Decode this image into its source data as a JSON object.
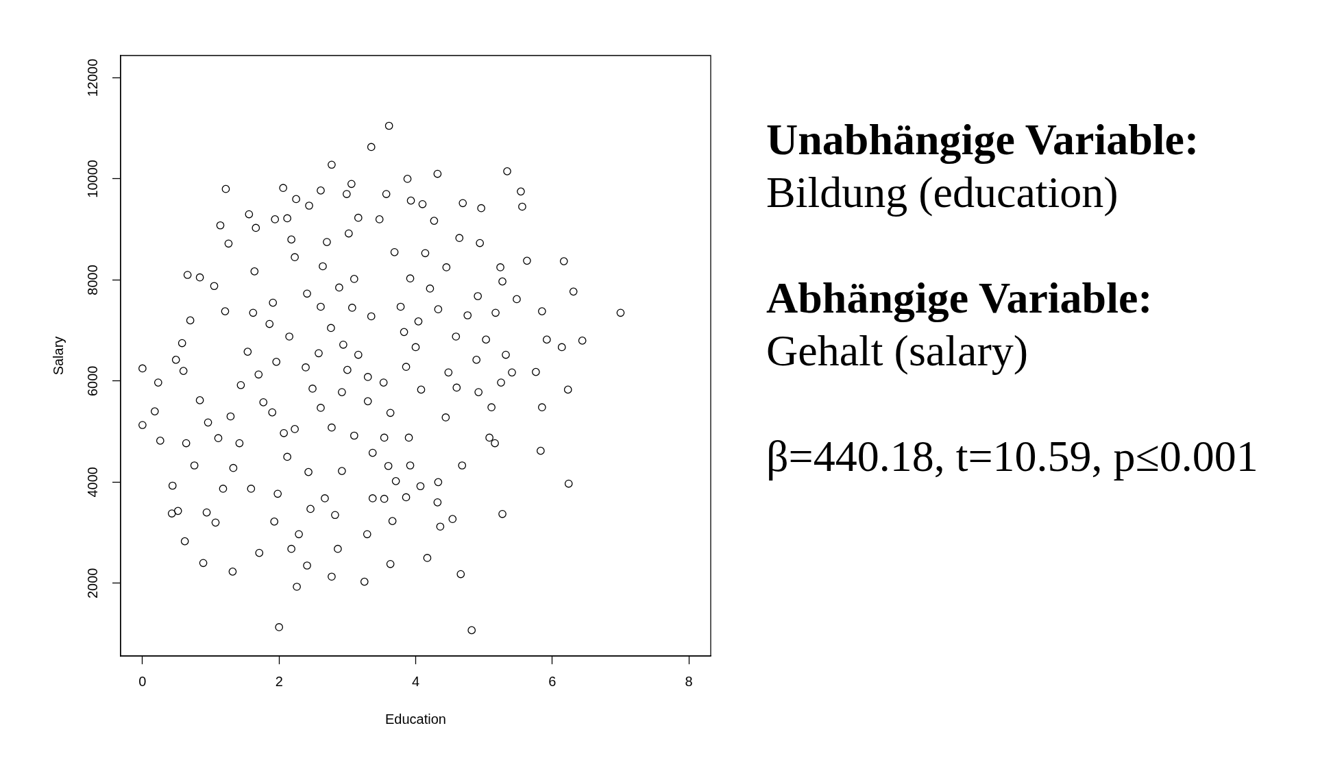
{
  "chart_data": {
    "type": "scatter",
    "xlabel": "Education",
    "ylabel": "Salary",
    "x": [
      0,
      0,
      3.61,
      3.35,
      2.77,
      4.32,
      5.34,
      1.22,
      2.06,
      3.06,
      3.88,
      2.0,
      4.82,
      2.26,
      3.25,
      4.17,
      4.66,
      2.77,
      1.32,
      0.89,
      7.0,
      6.44,
      6.14,
      6.17,
      6.31,
      6.24,
      5.83,
      5.27,
      5.85,
      6.23,
      5.76,
      5.92,
      5.85,
      5.63,
      5.54,
      5.56,
      4.69,
      4.96,
      4.54,
      4.36,
      4.32,
      4.68,
      5.08,
      5.16,
      4.33,
      0.26,
      0.18,
      0.23,
      0.44,
      0.43,
      0.52,
      0.62,
      0.94,
      1.07,
      1.18,
      0.66,
      0.84,
      1.05,
      1.14,
      1.26,
      0.7,
      0.58,
      0.6,
      0.49,
      0.84,
      0.96,
      0.64,
      0.76,
      1.11,
      1.29,
      1.44,
      1.54,
      1.21,
      1.64,
      1.56,
      1.66,
      1.94,
      1.42,
      1.33,
      1.59,
      1.71,
      1.93,
      1.98,
      2.18,
      2.29,
      2.41,
      2.46,
      2.67,
      2.82,
      2.86,
      3.29,
      3.37,
      3.66,
      3.63,
      3.54,
      3.86,
      3.71,
      3.92,
      4.07,
      2.25,
      2.44,
      2.61,
      2.99,
      3.02,
      3.16,
      3.47,
      3.57,
      3.93,
      4.1,
      4.27,
      2.12,
      2.18,
      2.23,
      2.7,
      2.64,
      3.69,
      3.92,
      4.14,
      4.45,
      4.64,
      4.94,
      5.24,
      5.27,
      4.91,
      4.76,
      5.17,
      5.48,
      5.03,
      5.32,
      5.41,
      5.25,
      4.92,
      5.11,
      4.44,
      4.6,
      4.89,
      4.48,
      1.91,
      1.62,
      1.86,
      2.15,
      1.96,
      1.7,
      1.77,
      1.9,
      2.07,
      2.23,
      2.12,
      2.43,
      2.92,
      3.1,
      2.77,
      2.61,
      2.49,
      2.39,
      2.58,
      2.76,
      2.61,
      2.41,
      2.88,
      3.1,
      3.07,
      3.35,
      2.94,
      3.16,
      3.0,
      3.3,
      3.53,
      2.92,
      3.3,
      3.63,
      3.54,
      3.9,
      3.37,
      3.6,
      3.83,
      3.78,
      4.04,
      4.0,
      3.86,
      4.08,
      4.21,
      4.33,
      4.59
    ],
    "values": [
      6250,
      5130,
      11050,
      10630,
      10280,
      10100,
      10150,
      9800,
      9820,
      9900,
      10000,
      1130,
      1070,
      1930,
      2030,
      2500,
      2180,
      2130,
      2230,
      2400,
      7350,
      6800,
      6670,
      8370,
      7770,
      3970,
      4620,
      3370,
      5480,
      5830,
      6180,
      6820,
      7380,
      8380,
      9750,
      9450,
      9520,
      9420,
      3270,
      3120,
      3600,
      4330,
      4880,
      4770,
      4000,
      4820,
      5400,
      5970,
      3930,
      3380,
      3430,
      2830,
      3400,
      3200,
      3870,
      8100,
      8050,
      7880,
      9080,
      8720,
      7200,
      6750,
      6200,
      6420,
      5620,
      5180,
      4770,
      4330,
      4870,
      5300,
      5920,
      6580,
      7380,
      8170,
      9300,
      9030,
      9200,
      4770,
      4280,
      3870,
      2600,
      3220,
      3770,
      2680,
      2970,
      2350,
      3470,
      3680,
      3350,
      2680,
      2970,
      3680,
      3230,
      2380,
      3670,
      3700,
      4020,
      4330,
      3920,
      9600,
      9470,
      9770,
      9700,
      8920,
      9230,
      9200,
      9700,
      9570,
      9500,
      9170,
      9220,
      8800,
      8450,
      8750,
      8270,
      8550,
      8030,
      8530,
      8250,
      8830,
      8730,
      8250,
      7970,
      7680,
      7300,
      7350,
      7620,
      6820,
      6520,
      6170,
      5970,
      5780,
      5480,
      5280,
      5870,
      6420,
      6170,
      7550,
      7350,
      7130,
      6880,
      6380,
      6130,
      5580,
      5380,
      4970,
      5050,
      4500,
      4200,
      4220,
      4920,
      5080,
      5470,
      5850,
      6270,
      6550,
      7050,
      7470,
      7730,
      7850,
      8020,
      7450,
      7280,
      6720,
      6520,
      6220,
      6080,
      5970,
      5780,
      5600,
      5370,
      4880,
      4880,
      4580,
      4320,
      6970,
      7470,
      7180,
      6670,
      6280,
      5830,
      7830,
      7420,
      6880
    ],
    "color": "#000000",
    "marker": "circle",
    "xlim": [
      -0.32,
      8.32
    ],
    "ylim": [
      560,
      12440
    ],
    "xticks": [
      0,
      2,
      4,
      6,
      8
    ],
    "yticks": [
      2000,
      4000,
      6000,
      8000,
      10000,
      12000
    ],
    "annotations": [
      "Unabhängige Variable:",
      "Bildung (education)",
      "Abhängige Variable:",
      "Gehalt (salary)",
      "β=440.18, t=10.59, p≤0.001"
    ]
  }
}
